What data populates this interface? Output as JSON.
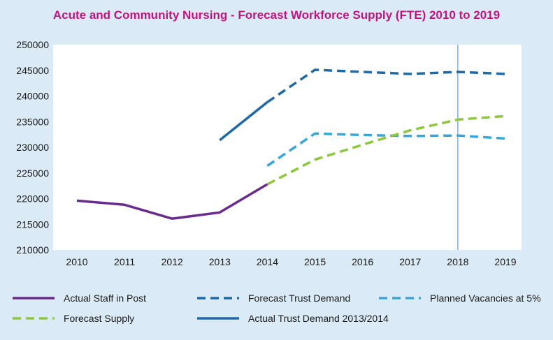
{
  "chart_data": {
    "type": "line",
    "title": "Acute and Community Nursing - Forecast Workforce Supply (FTE) 2010 to 2019",
    "xlabel": "",
    "ylabel": "",
    "x": [
      2010,
      2011,
      2012,
      2013,
      2014,
      2015,
      2016,
      2017,
      2018,
      2019
    ],
    "ylim": [
      210000,
      250000
    ],
    "yticks": [
      210000,
      215000,
      220000,
      225000,
      230000,
      235000,
      240000,
      245000,
      250000
    ],
    "vertical_marker_x": 2018,
    "grid": false,
    "legend_position": "bottom",
    "series": [
      {
        "name": "Actual Staff in Post",
        "color": "#6a2c8c",
        "dash": "solid",
        "points": [
          [
            2010,
            219600
          ],
          [
            2011,
            218800
          ],
          [
            2012,
            216100
          ],
          [
            2013,
            217300
          ],
          [
            2014,
            222800
          ]
        ]
      },
      {
        "name": "Forecast Trust Demand",
        "color": "#1f6aa5",
        "dash": "dashed",
        "points": [
          [
            2014,
            238800
          ],
          [
            2015,
            245100
          ],
          [
            2016,
            244700
          ],
          [
            2017,
            244300
          ],
          [
            2018,
            244700
          ],
          [
            2019,
            244300
          ]
        ]
      },
      {
        "name": "Planned Vacancies at 5%",
        "color": "#3aa6d8",
        "dash": "dashed",
        "points": [
          [
            2014,
            226400
          ],
          [
            2015,
            232700
          ],
          [
            2016,
            232400
          ],
          [
            2017,
            232200
          ],
          [
            2018,
            232300
          ],
          [
            2019,
            231700
          ]
        ]
      },
      {
        "name": "Forecast Supply",
        "color": "#8dc63f",
        "dash": "dashed",
        "points": [
          [
            2014,
            222800
          ],
          [
            2015,
            227600
          ],
          [
            2016,
            230500
          ],
          [
            2017,
            233300
          ],
          [
            2018,
            235400
          ],
          [
            2019,
            236100
          ]
        ]
      },
      {
        "name": "Actual Trust Demand 2013/2014",
        "color": "#1f6aa5",
        "dash": "solid",
        "points": [
          [
            2013,
            231400
          ],
          [
            2014,
            238800
          ]
        ]
      }
    ]
  }
}
